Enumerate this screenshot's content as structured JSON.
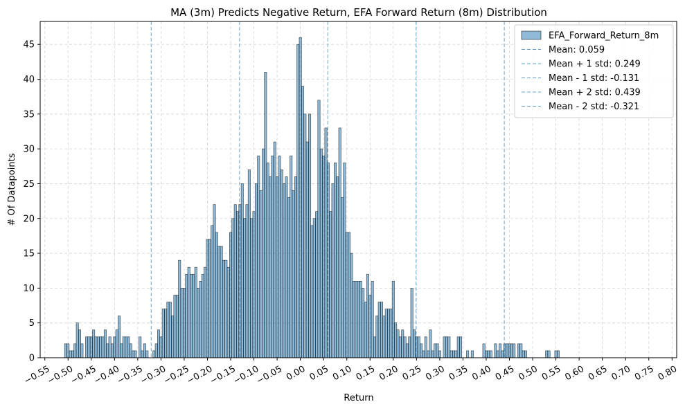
{
  "chart_data": {
    "type": "bar",
    "title": "MA (3m) Predicts Negative Return, EFA Forward Return (8m) Distribution",
    "xlabel": "Return",
    "ylabel": "# Of Datapoints",
    "xlim": [
      -0.56,
      0.81
    ],
    "ylim": [
      0,
      48.3
    ],
    "grid": true,
    "legend_position": "top-right",
    "bar_color": "#1f77b4",
    "bar_alpha": 0.5,
    "bar_edge_color": "#000000",
    "x_ticks": [
      -0.55,
      -0.5,
      -0.45,
      -0.4,
      -0.35,
      -0.3,
      -0.25,
      -0.2,
      -0.15,
      -0.1,
      -0.05,
      0.0,
      0.05,
      0.1,
      0.15,
      0.2,
      0.25,
      0.3,
      0.35,
      0.4,
      0.45,
      0.5,
      0.55,
      0.6,
      0.65,
      0.7,
      0.75,
      0.8
    ],
    "x_tick_labels": [
      "−0.55",
      "−0.50",
      "−0.45",
      "−0.40",
      "−0.35",
      "−0.30",
      "−0.25",
      "−0.20",
      "−0.15",
      "−0.10",
      "−0.05",
      "0.00",
      "0.05",
      "0.10",
      "0.15",
      "0.20",
      "0.25",
      "0.30",
      "0.35",
      "0.40",
      "0.45",
      "0.50",
      "0.55",
      "0.60",
      "0.65",
      "0.70",
      "0.75",
      "0.80"
    ],
    "y_ticks": [
      0,
      5,
      10,
      15,
      20,
      25,
      30,
      35,
      40,
      45
    ],
    "y_tick_labels": [
      "0",
      "5",
      "10",
      "15",
      "20",
      "25",
      "30",
      "35",
      "40",
      "45"
    ],
    "bin_start": -0.5075,
    "bin_width": 0.005,
    "counts": [
      2,
      2,
      1,
      1,
      2,
      5,
      4,
      2,
      0,
      3,
      3,
      3,
      4,
      3,
      3,
      3,
      3,
      4,
      2,
      3,
      2,
      3,
      4,
      6,
      2,
      3,
      3,
      3,
      2,
      1,
      1,
      0,
      3,
      1,
      2,
      1,
      0,
      0,
      1,
      2,
      4,
      3,
      7,
      7,
      8,
      8,
      6,
      9,
      9,
      14,
      10,
      10,
      12,
      13,
      12,
      12,
      13,
      10,
      11,
      12,
      13,
      17,
      17,
      19,
      22,
      18,
      16,
      16,
      14,
      14,
      13,
      18,
      20,
      22,
      21,
      22,
      25,
      20,
      22,
      27,
      20,
      21,
      25,
      29,
      24,
      30,
      41,
      28,
      26,
      29,
      31,
      26,
      29,
      27,
      25,
      26,
      23,
      29,
      24,
      26,
      45,
      46,
      39,
      35,
      31,
      35,
      19,
      20,
      21,
      37,
      30,
      29,
      33,
      28,
      21,
      25,
      28,
      26,
      33,
      23,
      28,
      18,
      18,
      15,
      11,
      11,
      11,
      11,
      10,
      8,
      12,
      9,
      11,
      3,
      6,
      8,
      8,
      6,
      7,
      7,
      7,
      11,
      5,
      4,
      3,
      4,
      3,
      2,
      3,
      10,
      4,
      3,
      3,
      2,
      1,
      3,
      1,
      4,
      1,
      2,
      2,
      1,
      0,
      3,
      3,
      3,
      1,
      1,
      1,
      3,
      3,
      0,
      0,
      1,
      0,
      1,
      0,
      0,
      0,
      0,
      2,
      1,
      1,
      1,
      0,
      2,
      1,
      2,
      1,
      2,
      2,
      2,
      2,
      2,
      0,
      2,
      2,
      1,
      1,
      0,
      0,
      0,
      0,
      0,
      0,
      0,
      0,
      1,
      1,
      0,
      0,
      1,
      1
    ],
    "reference_lines": [
      {
        "label": "Mean: 0.059",
        "x": 0.059
      },
      {
        "label": "Mean + 1 std: 0.249",
        "x": 0.249
      },
      {
        "label": "Mean - 1 std: -0.131",
        "x": -0.131
      },
      {
        "label": "Mean + 2 std: 0.439",
        "x": 0.439
      },
      {
        "label": "Mean - 2 std: -0.321",
        "x": -0.321
      }
    ],
    "reference_line_color": "#1f77b4",
    "legend": {
      "entries": [
        "EFA_Forward_Return_8m",
        "Mean: 0.059",
        "Mean + 1 std: 0.249",
        "Mean - 1 std: -0.131",
        "Mean + 2 std: 0.439",
        "Mean - 2 std: -0.321"
      ]
    }
  }
}
